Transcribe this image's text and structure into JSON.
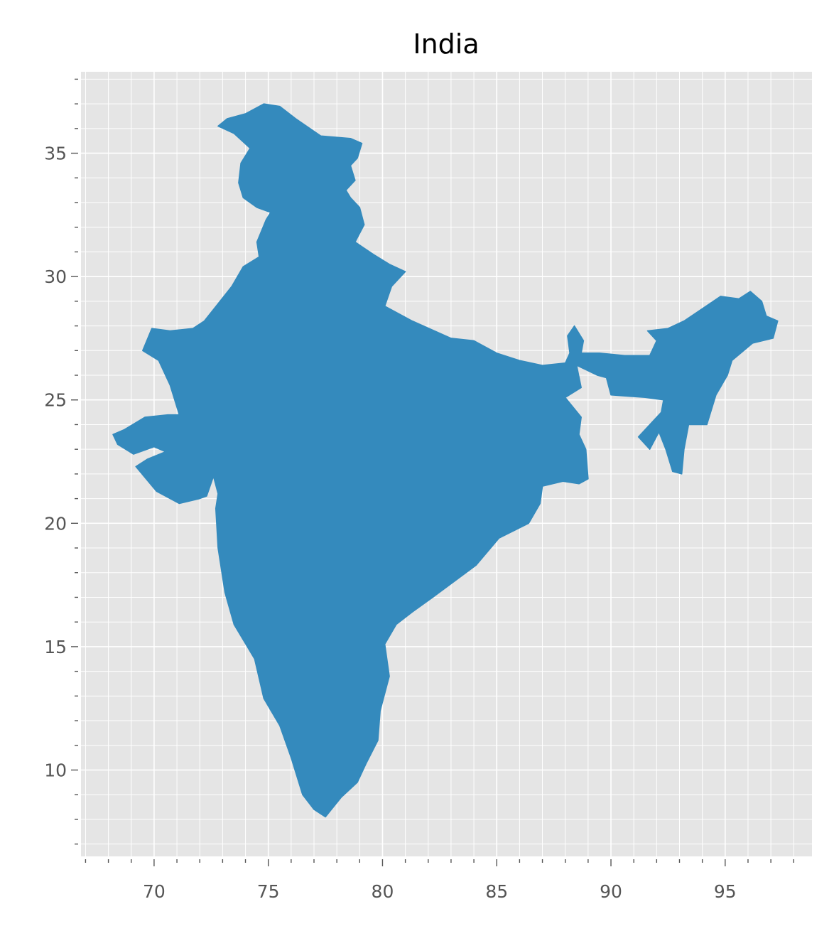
{
  "title": "India",
  "colors": {
    "background": "#E5E5E5",
    "country_fill": "#348ABD",
    "grid": "#FFFFFF",
    "tick_text": "#555555",
    "title_text": "#000000"
  },
  "chart_data": {
    "type": "map",
    "title": "India",
    "region": "India",
    "xlim": [
      66.8,
      98.8
    ],
    "ylim": [
      6.5,
      38.3
    ],
    "x_ticks": [
      70,
      75,
      80,
      85,
      90,
      95
    ],
    "y_ticks": [
      10,
      15,
      20,
      25,
      30,
      35
    ],
    "x_minor_step": 1,
    "y_minor_step": 1,
    "grid": true,
    "outline_mainland": [
      [
        68.2,
        23.6
      ],
      [
        68.7,
        23.8
      ],
      [
        69.6,
        24.3
      ],
      [
        70.6,
        24.4
      ],
      [
        71.1,
        24.4
      ],
      [
        70.7,
        25.6
      ],
      [
        70.2,
        26.6
      ],
      [
        69.5,
        27.0
      ],
      [
        69.9,
        27.9
      ],
      [
        70.7,
        27.8
      ],
      [
        71.7,
        27.9
      ],
      [
        72.2,
        28.2
      ],
      [
        72.8,
        28.9
      ],
      [
        73.4,
        29.6
      ],
      [
        73.9,
        30.4
      ],
      [
        74.6,
        30.8
      ],
      [
        74.5,
        31.4
      ],
      [
        74.9,
        32.3
      ],
      [
        75.1,
        32.6
      ],
      [
        74.5,
        32.8
      ],
      [
        73.9,
        33.2
      ],
      [
        73.7,
        33.8
      ],
      [
        73.8,
        34.6
      ],
      [
        74.2,
        35.2
      ],
      [
        73.5,
        35.8
      ],
      [
        72.8,
        36.1
      ],
      [
        73.2,
        36.4
      ],
      [
        74.0,
        36.6
      ],
      [
        74.8,
        37.0
      ],
      [
        75.5,
        36.9
      ],
      [
        76.2,
        36.4
      ],
      [
        77.3,
        35.7
      ],
      [
        78.6,
        35.6
      ],
      [
        79.1,
        35.4
      ],
      [
        78.9,
        34.8
      ],
      [
        78.6,
        34.5
      ],
      [
        78.8,
        33.9
      ],
      [
        78.4,
        33.5
      ],
      [
        78.6,
        33.2
      ],
      [
        79.0,
        32.8
      ],
      [
        79.2,
        32.1
      ],
      [
        78.8,
        31.4
      ],
      [
        79.6,
        30.9
      ],
      [
        80.3,
        30.5
      ],
      [
        81.0,
        30.2
      ],
      [
        80.4,
        29.6
      ],
      [
        80.1,
        28.8
      ],
      [
        81.3,
        28.2
      ],
      [
        83.0,
        27.5
      ],
      [
        84.0,
        27.4
      ],
      [
        85.0,
        26.9
      ],
      [
        86.0,
        26.6
      ],
      [
        87.0,
        26.4
      ],
      [
        88.0,
        26.5
      ],
      [
        88.2,
        26.9
      ],
      [
        88.1,
        27.6
      ],
      [
        88.4,
        28.0
      ],
      [
        88.8,
        27.4
      ],
      [
        88.7,
        26.9
      ],
      [
        89.5,
        26.9
      ],
      [
        90.6,
        26.8
      ],
      [
        91.7,
        26.8
      ],
      [
        92.0,
        27.4
      ],
      [
        91.6,
        27.8
      ],
      [
        92.5,
        27.9
      ],
      [
        93.2,
        28.2
      ],
      [
        94.0,
        28.7
      ],
      [
        94.8,
        29.2
      ],
      [
        95.6,
        29.1
      ],
      [
        96.1,
        29.4
      ],
      [
        96.6,
        29.0
      ],
      [
        96.8,
        28.4
      ],
      [
        97.3,
        28.2
      ],
      [
        97.1,
        27.5
      ],
      [
        96.2,
        27.3
      ],
      [
        95.3,
        26.6
      ],
      [
        95.1,
        26.0
      ],
      [
        94.6,
        25.2
      ],
      [
        94.2,
        24.0
      ],
      [
        93.4,
        24.0
      ],
      [
        93.2,
        23.0
      ],
      [
        93.1,
        22.0
      ],
      [
        92.7,
        22.1
      ],
      [
        92.4,
        23.0
      ],
      [
        92.1,
        23.7
      ],
      [
        91.7,
        23.0
      ],
      [
        91.2,
        23.5
      ],
      [
        91.8,
        24.1
      ],
      [
        92.2,
        24.5
      ],
      [
        92.3,
        25.0
      ],
      [
        91.5,
        25.1
      ],
      [
        90.0,
        25.2
      ],
      [
        89.8,
        25.9
      ],
      [
        89.4,
        26.0
      ],
      [
        88.5,
        26.4
      ],
      [
        88.7,
        25.5
      ],
      [
        88.0,
        25.1
      ],
      [
        88.7,
        24.3
      ],
      [
        88.6,
        23.6
      ],
      [
        88.9,
        23.0
      ],
      [
        89.0,
        21.8
      ],
      [
        88.6,
        21.6
      ],
      [
        87.9,
        21.7
      ],
      [
        87.0,
        21.5
      ],
      [
        86.9,
        20.8
      ],
      [
        86.4,
        20.0
      ],
      [
        85.1,
        19.4
      ],
      [
        84.1,
        18.3
      ],
      [
        82.2,
        17.0
      ],
      [
        81.3,
        16.4
      ],
      [
        80.6,
        15.9
      ],
      [
        80.1,
        15.1
      ],
      [
        80.3,
        13.8
      ],
      [
        79.9,
        12.4
      ],
      [
        79.8,
        11.2
      ],
      [
        79.3,
        10.3
      ],
      [
        78.9,
        9.5
      ],
      [
        78.2,
        8.9
      ],
      [
        77.5,
        8.1
      ],
      [
        77.0,
        8.4
      ],
      [
        76.5,
        9.0
      ],
      [
        76.0,
        10.5
      ],
      [
        75.5,
        11.8
      ],
      [
        74.8,
        12.9
      ],
      [
        74.4,
        14.5
      ],
      [
        73.5,
        15.9
      ],
      [
        73.1,
        17.2
      ],
      [
        72.8,
        19.0
      ],
      [
        72.7,
        20.6
      ],
      [
        72.8,
        21.2
      ],
      [
        72.6,
        21.9
      ],
      [
        72.3,
        21.1
      ],
      [
        72.0,
        21.0
      ],
      [
        71.1,
        20.8
      ],
      [
        70.1,
        21.3
      ],
      [
        69.2,
        22.3
      ],
      [
        69.7,
        22.6
      ],
      [
        70.5,
        22.9
      ],
      [
        70.0,
        23.1
      ],
      [
        69.1,
        22.8
      ],
      [
        68.4,
        23.2
      ]
    ]
  }
}
